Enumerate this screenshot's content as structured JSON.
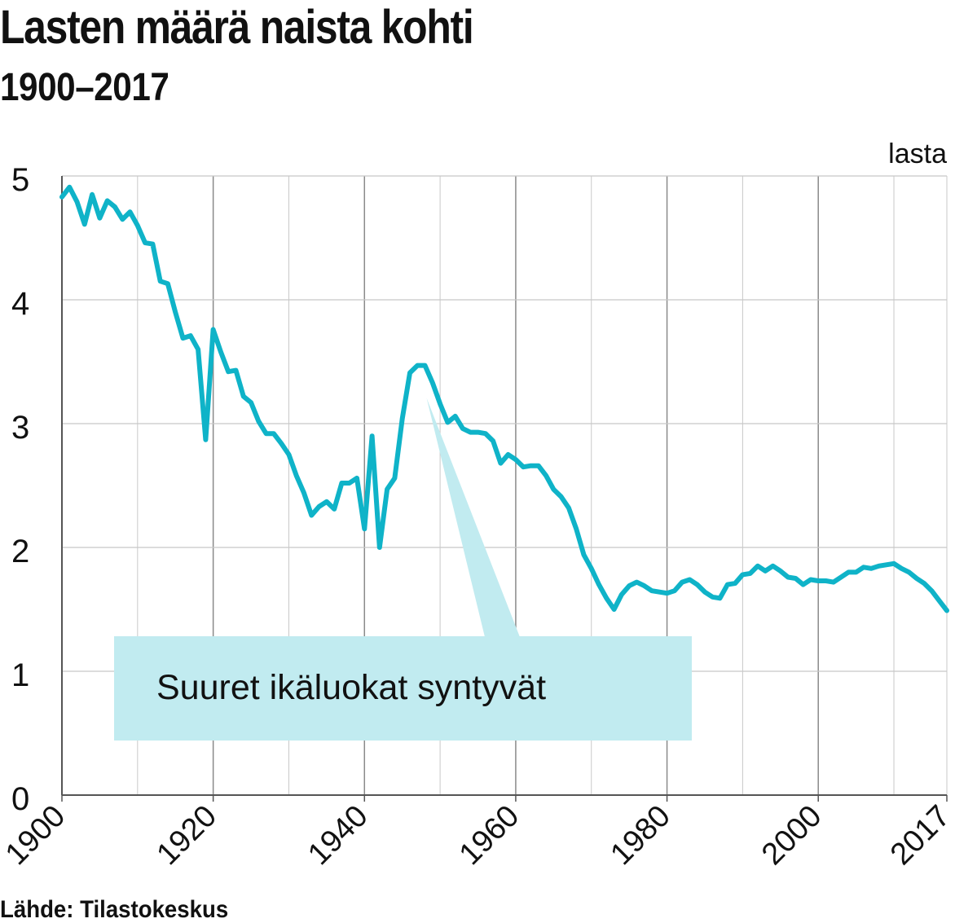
{
  "title": "Lasten määrä naista kohti",
  "subtitle": "1900–2017",
  "source": "Lähde: Tilastokeskus",
  "colors": {
    "line": "#0fb3c8",
    "annotation_box": "#c1ebf0",
    "grid": "#c8c8c8",
    "axis": "#555555"
  },
  "chart_data": {
    "type": "line",
    "ylabel": "lasta",
    "ylim": [
      0,
      5
    ],
    "yticks": [
      "0",
      "1",
      "2",
      "3",
      "4",
      "5"
    ],
    "xlim": [
      1900,
      2017
    ],
    "xticks": [
      "1900",
      "1920",
      "1940",
      "1960",
      "1980",
      "2000",
      "2017"
    ],
    "grid": true,
    "annotation": {
      "text": "Suuret ikäluokat syntyvät",
      "points_to_year": 1948,
      "points_to_value": 3.47
    },
    "series": [
      {
        "x": [
          1900,
          1901,
          1902,
          1903,
          1904,
          1905,
          1906,
          1907,
          1908,
          1909,
          1910,
          1911,
          1912,
          1913,
          1914,
          1915,
          1916,
          1917,
          1918,
          1919,
          1920,
          1921,
          1922,
          1923,
          1924,
          1925,
          1926,
          1927,
          1928,
          1929,
          1930,
          1931,
          1932,
          1933,
          1934,
          1935,
          1936,
          1937,
          1938,
          1939,
          1940,
          1941,
          1942,
          1943,
          1944,
          1945,
          1946,
          1947,
          1948,
          1949,
          1950,
          1951,
          1952,
          1953,
          1954,
          1955,
          1956,
          1957,
          1958,
          1959,
          1960,
          1961,
          1962,
          1963,
          1964,
          1965,
          1966,
          1967,
          1968,
          1969,
          1970,
          1971,
          1972,
          1973,
          1974,
          1975,
          1976,
          1977,
          1978,
          1979,
          1980,
          1981,
          1982,
          1983,
          1984,
          1985,
          1986,
          1987,
          1988,
          1989,
          1990,
          1991,
          1992,
          1993,
          1994,
          1995,
          1996,
          1997,
          1998,
          1999,
          2000,
          2001,
          2002,
          2003,
          2004,
          2005,
          2006,
          2007,
          2008,
          2009,
          2010,
          2011,
          2012,
          2013,
          2014,
          2015,
          2016,
          2017
        ],
        "values": [
          4.83,
          4.91,
          4.79,
          4.61,
          4.85,
          4.66,
          4.8,
          4.75,
          4.65,
          4.71,
          4.6,
          4.46,
          4.45,
          4.15,
          4.13,
          3.9,
          3.69,
          3.71,
          3.6,
          2.87,
          3.76,
          3.58,
          3.42,
          3.43,
          3.22,
          3.17,
          3.02,
          2.92,
          2.92,
          2.84,
          2.75,
          2.58,
          2.44,
          2.26,
          2.33,
          2.37,
          2.31,
          2.52,
          2.52,
          2.56,
          2.15,
          2.9,
          2.0,
          2.47,
          2.56,
          3.04,
          3.41,
          3.47,
          3.47,
          3.33,
          3.16,
          3.01,
          3.06,
          2.96,
          2.93,
          2.93,
          2.92,
          2.86,
          2.68,
          2.75,
          2.71,
          2.65,
          2.66,
          2.66,
          2.58,
          2.47,
          2.41,
          2.32,
          2.15,
          1.94,
          1.83,
          1.7,
          1.59,
          1.5,
          1.62,
          1.69,
          1.72,
          1.69,
          1.65,
          1.64,
          1.63,
          1.65,
          1.72,
          1.74,
          1.7,
          1.64,
          1.6,
          1.59,
          1.7,
          1.71,
          1.78,
          1.79,
          1.85,
          1.81,
          1.85,
          1.81,
          1.76,
          1.75,
          1.7,
          1.74,
          1.73,
          1.73,
          1.72,
          1.76,
          1.8,
          1.8,
          1.84,
          1.83,
          1.85,
          1.86,
          1.87,
          1.83,
          1.8,
          1.75,
          1.71,
          1.65,
          1.57,
          1.49
        ]
      }
    ]
  }
}
